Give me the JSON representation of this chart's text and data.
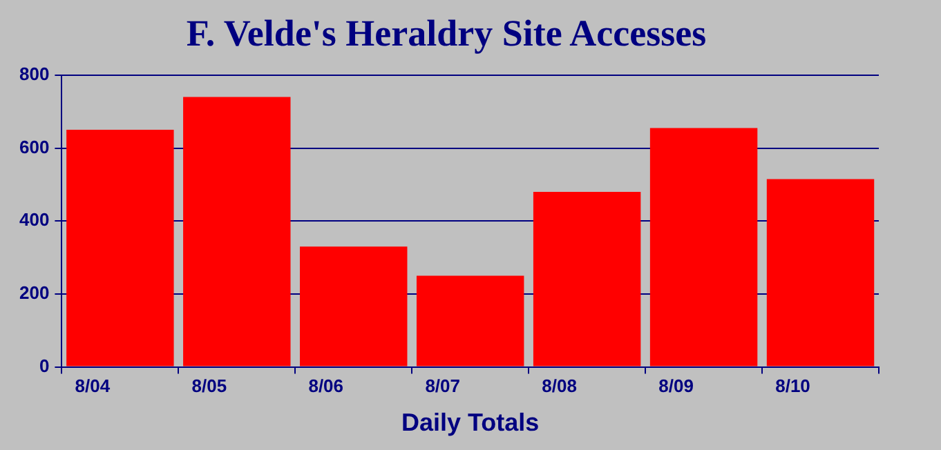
{
  "chart_data": {
    "type": "bar",
    "title": "F. Velde's Heraldry Site Accesses",
    "xlabel": "Daily Totals",
    "categories": [
      "8/04",
      "8/05",
      "8/06",
      "8/07",
      "8/08",
      "8/09",
      "8/10"
    ],
    "values": [
      650,
      740,
      330,
      250,
      480,
      655,
      515
    ],
    "color": "#ff0000",
    "ylim": [
      0,
      800
    ],
    "yticks": [
      0,
      200,
      400,
      600,
      800
    ],
    "grid": "y"
  }
}
